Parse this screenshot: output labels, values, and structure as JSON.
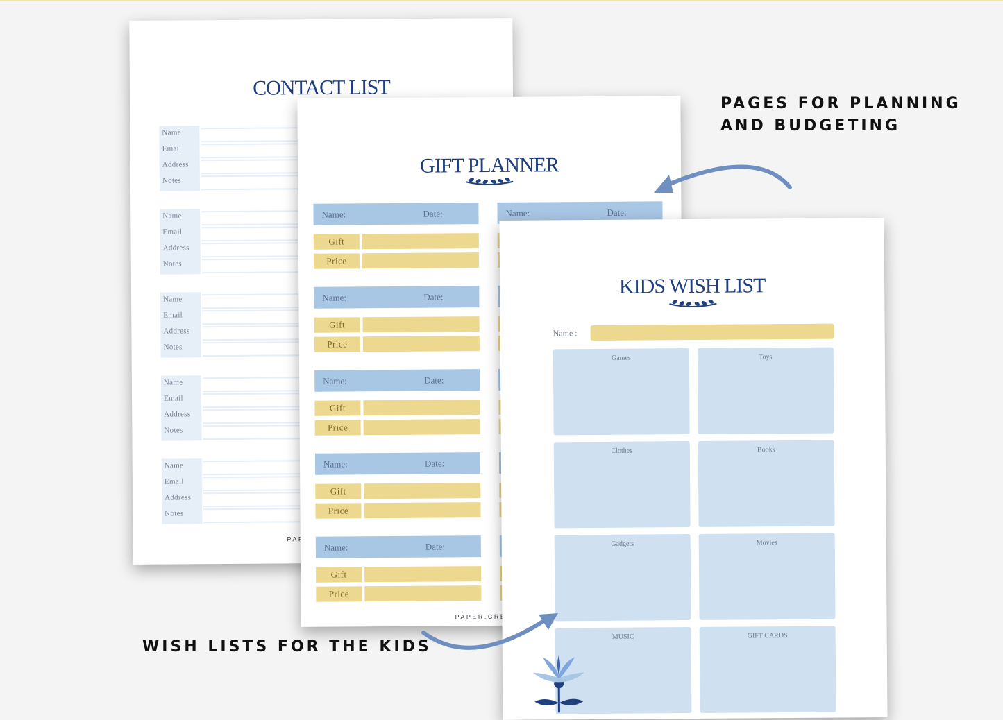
{
  "captions": {
    "planning_line1": "PAGES FOR PLANNING",
    "planning_line2": "AND BUDGETING",
    "kids": "WISH LISTS FOR THE KIDS"
  },
  "contact_list": {
    "title": "CONTACT LIST",
    "field_labels": [
      "Name",
      "Email",
      "Address",
      "Notes"
    ],
    "footer": "PAPER."
  },
  "gift_planner": {
    "title": "GIFT PLANNER",
    "name_label": "Name:",
    "date_label": "Date:",
    "gift_label": "Gift",
    "price_label": "Price",
    "footer": "PAPER.CREAT"
  },
  "kids_wish_list": {
    "title": "KIDS WISH LIST",
    "name_label": "Name :",
    "categories": [
      "Games",
      "Toys",
      "Clothes",
      "Books",
      "Gadgets",
      "Movies",
      "MUSIC",
      "GIFT CARDS"
    ]
  },
  "colors": {
    "navy": "#1f3f7e",
    "light_blue": "#a8c7e5",
    "pale_blue": "#cfe0f1",
    "yellow": "#ecd88e",
    "arrow": "#6f8fc0"
  },
  "icons": [
    "laurel-ornament-icon",
    "flower-ornament-icon",
    "curved-arrow-icon"
  ]
}
